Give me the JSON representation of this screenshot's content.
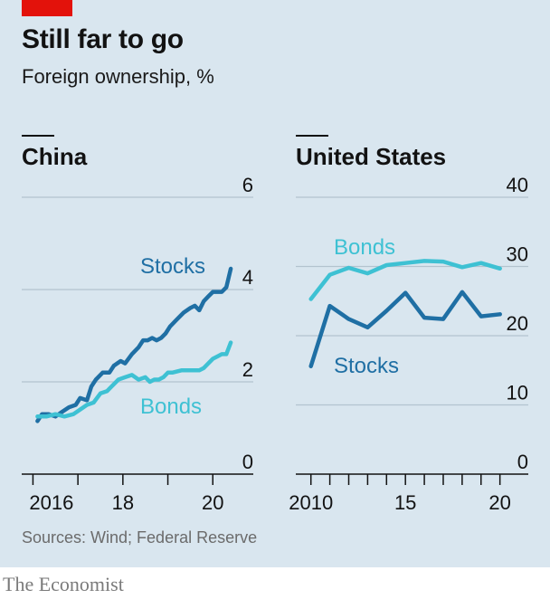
{
  "header": {
    "title": "Still far to go",
    "subtitle": "Foreign ownership, %"
  },
  "footer": {
    "source": "Sources: Wind; Federal Reserve",
    "brand": "The Economist"
  },
  "colors": {
    "stocks": "#1f6fa4",
    "bonds": "#3ec1d3",
    "accent_red": "#e3120b",
    "background": "#d9e6ef"
  },
  "chart_data": [
    {
      "type": "line",
      "title": "China",
      "xlabel": "",
      "ylabel": "",
      "xlim": [
        2015.75,
        2020.9
      ],
      "ylim": [
        0,
        6
      ],
      "x_ticks": [
        2016,
        2017,
        2018,
        2019,
        2020
      ],
      "x_tick_labels": [
        "2016",
        "",
        "18",
        "",
        "20"
      ],
      "y_ticks": [
        0,
        2,
        4,
        6
      ],
      "y_tick_labels": [
        "0",
        "2",
        "4",
        "6"
      ],
      "grid": true,
      "series": [
        {
          "name": "Stocks",
          "color": "#1f6fa4",
          "x": [
            2016.1,
            2016.2,
            2016.35,
            2016.5,
            2016.65,
            2016.8,
            2016.95,
            2017.05,
            2017.2,
            2017.3,
            2017.4,
            2017.55,
            2017.7,
            2017.8,
            2017.95,
            2018.05,
            2018.2,
            2018.35,
            2018.45,
            2018.55,
            2018.65,
            2018.75,
            2018.85,
            2018.95,
            2019.05,
            2019.2,
            2019.35,
            2019.5,
            2019.6,
            2019.7,
            2019.8,
            2019.9,
            2020.0,
            2020.1,
            2020.2,
            2020.3,
            2020.4
          ],
          "values": [
            1.15,
            1.3,
            1.3,
            1.25,
            1.35,
            1.45,
            1.5,
            1.65,
            1.6,
            1.9,
            2.05,
            2.2,
            2.2,
            2.35,
            2.45,
            2.4,
            2.6,
            2.75,
            2.9,
            2.9,
            2.95,
            2.9,
            2.95,
            3.05,
            3.2,
            3.35,
            3.5,
            3.6,
            3.65,
            3.55,
            3.75,
            3.85,
            3.95,
            3.95,
            3.95,
            4.05,
            4.45
          ]
        },
        {
          "name": "Bonds",
          "color": "#3ec1d3",
          "x": [
            2016.1,
            2016.3,
            2016.5,
            2016.7,
            2016.9,
            2017.05,
            2017.2,
            2017.35,
            2017.5,
            2017.65,
            2017.75,
            2017.9,
            2018.05,
            2018.2,
            2018.35,
            2018.5,
            2018.6,
            2018.7,
            2018.8,
            2018.9,
            2019.0,
            2019.1,
            2019.3,
            2019.5,
            2019.7,
            2019.8,
            2019.9,
            2020.0,
            2020.1,
            2020.2,
            2020.3,
            2020.4
          ],
          "values": [
            1.25,
            1.25,
            1.3,
            1.25,
            1.3,
            1.4,
            1.5,
            1.55,
            1.75,
            1.8,
            1.9,
            2.05,
            2.1,
            2.15,
            2.05,
            2.1,
            2.0,
            2.05,
            2.05,
            2.1,
            2.2,
            2.2,
            2.25,
            2.25,
            2.25,
            2.3,
            2.4,
            2.5,
            2.55,
            2.6,
            2.6,
            2.85
          ]
        }
      ]
    },
    {
      "type": "line",
      "title": "United States",
      "xlabel": "",
      "ylabel": "",
      "xlim": [
        2009.2,
        2021.5
      ],
      "ylim": [
        0,
        40
      ],
      "x_ticks": [
        2010,
        2011,
        2012,
        2013,
        2014,
        2015,
        2016,
        2017,
        2018,
        2019,
        2020
      ],
      "x_tick_labels": [
        "2010",
        "",
        "",
        "",
        "",
        "15",
        "",
        "",
        "",
        "",
        "20"
      ],
      "y_ticks": [
        0,
        10,
        20,
        30,
        40
      ],
      "y_tick_labels": [
        "0",
        "10",
        "20",
        "30",
        "40"
      ],
      "grid": true,
      "series": [
        {
          "name": "Bonds",
          "color": "#3ec1d3",
          "x": [
            2010,
            2011,
            2012,
            2013,
            2014,
            2015,
            2016,
            2017,
            2018,
            2019,
            2020
          ],
          "values": [
            25.3,
            28.8,
            29.8,
            29.0,
            30.2,
            30.5,
            30.8,
            30.7,
            29.9,
            30.5,
            29.7
          ]
        },
        {
          "name": "Stocks",
          "color": "#1f6fa4",
          "x": [
            2010,
            2011,
            2012,
            2013,
            2014,
            2015,
            2016,
            2017,
            2018,
            2019,
            2020
          ],
          "values": [
            15.6,
            24.3,
            22.4,
            21.2,
            23.6,
            26.2,
            22.6,
            22.4,
            26.3,
            22.8,
            23.1
          ]
        }
      ]
    }
  ]
}
